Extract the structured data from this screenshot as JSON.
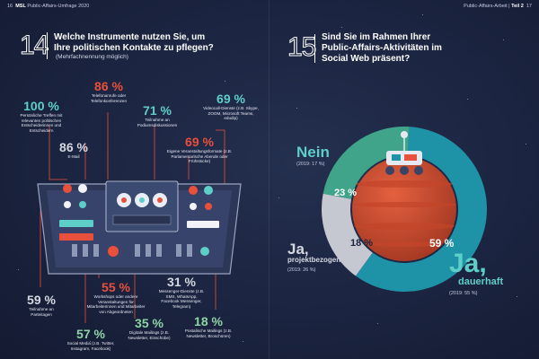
{
  "header": {
    "left_page": "16",
    "left_brand": "MSL",
    "left_title": "Public-Affairs-Umfrage 2020",
    "right_title": "Public-Affairs-Arbeit",
    "right_part": "Teil 2",
    "right_page": "17"
  },
  "q14": {
    "number": "14",
    "question_line1": "Welche Instrumente nutzen Sie, um",
    "question_line2": "Ihre politischen Kontakte zu pflegen?",
    "subtitle": "(Mehrfachnennung möglich)"
  },
  "q15": {
    "number": "15",
    "question_line1": "Sind Sie im Rahmen Ihrer",
    "question_line2": "Public-Affairs-Aktivitäten im",
    "question_line3": "Social Web präsent?"
  },
  "colors": {
    "teal": "#5ecfc8",
    "red": "#e8503b",
    "grey": "#d5d8e0",
    "green": "#8fd4a6",
    "background": "#1b2440"
  },
  "chart_data": [
    {
      "type": "bar",
      "title": "Welche Instrumente nutzen Sie, um Ihre politischen Kontakte zu pflegen?",
      "subtitle": "(Mehrfachnennung möglich)",
      "categories": [
        "Persönliche Treffen mit relevanten politischen Entscheiderinnen und Entscheidern",
        "Telefonanrufe oder Telefonkonferenzen",
        "E-Mail",
        "Teilnahme an Podiumsdiskussionen",
        "Videocall-Dienste (z.B. Skype, ZOOM, Microsoft Teams, edudip)",
        "Eigene Veranstaltungsformate (z.B. Parlamentarische Abende oder Frühstücke)",
        "Teilnahme an Parteitagen",
        "Workshops oder andere Veranstaltungen für Mitarbeiterinnen und Mitarbeiter von Abgeordneten",
        "Messenger-Dienste (z.B. SMS, WhatsApp, Facebook Messenger, Telegram)",
        "Social Media (z.B. Twitter, Instagram, Facebook)",
        "Digitale Mailings (z.B. Newsletter, Einschübe)",
        "Postalische Mailings (z.B. Newsletter, Broschüren)"
      ],
      "values": [
        100,
        86,
        86,
        71,
        69,
        69,
        59,
        55,
        31,
        57,
        35,
        18
      ],
      "value_labels": [
        "100 %",
        "86 %",
        "86 %",
        "71 %",
        "69 %",
        "69 %",
        "59 %",
        "55 %",
        "31 %",
        "57 %",
        "35 %",
        "18 %"
      ]
    },
    {
      "type": "pie",
      "title": "Sind Sie im Rahmen Ihrer Public-Affairs-Aktivitäten im Social Web präsent?",
      "slices": [
        {
          "label_main": "Ja,",
          "label_sub": "dauerhaft",
          "value": 59,
          "value_label": "59 %",
          "previous": "(2019: 55 %)",
          "color": "#1e92a6"
        },
        {
          "label_main": "Ja,",
          "label_sub": "projektbezogen",
          "value": 18,
          "value_label": "18 %",
          "previous": "(2019: 26 %)",
          "color": "#c5c8d0"
        },
        {
          "label_main": "Nein",
          "label_sub": "",
          "value": 23,
          "value_label": "23 %",
          "previous": "(2019: 17 %)",
          "color": "#3fa489"
        }
      ]
    }
  ]
}
